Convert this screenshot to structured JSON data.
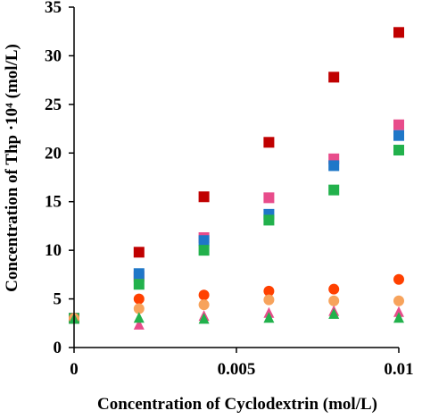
{
  "chart_data": {
    "type": "scatter",
    "xlabel": "Concentration of Cyclodextrin (mol/L)",
    "ylabel": "Concentration of  Thp ·10⁴ (mol/L)",
    "xlim": [
      0,
      0.01
    ],
    "ylim": [
      0,
      35
    ],
    "x_ticks": [
      0,
      0.005,
      0.01
    ],
    "x_tick_labels": [
      "0",
      "0.005",
      "0.01"
    ],
    "y_ticks": [
      0,
      5,
      10,
      15,
      20,
      25,
      30,
      35
    ],
    "y_tick_labels": [
      "0",
      "5",
      "10",
      "15",
      "20",
      "25",
      "30",
      "35"
    ],
    "grid": false,
    "legend": "none",
    "series": [
      {
        "marker": "square",
        "color": "#C00000",
        "x": [
          0,
          0.002,
          0.004,
          0.006,
          0.008,
          0.01
        ],
        "y": [
          3.0,
          9.8,
          15.5,
          21.1,
          27.8,
          32.4
        ]
      },
      {
        "marker": "square",
        "color": "#E84C8B",
        "x": [
          0,
          0.002,
          0.004,
          0.006,
          0.008,
          0.01
        ],
        "y": [
          3.0,
          7.3,
          11.3,
          15.4,
          19.4,
          22.9
        ]
      },
      {
        "marker": "square",
        "color": "#1F77C8",
        "x": [
          0,
          0.002,
          0.004,
          0.006,
          0.008,
          0.01
        ],
        "y": [
          3.0,
          7.6,
          11.0,
          13.7,
          18.7,
          21.8
        ]
      },
      {
        "marker": "square",
        "color": "#22B14C",
        "x": [
          0,
          0.002,
          0.004,
          0.006,
          0.008,
          0.01
        ],
        "y": [
          3.0,
          6.5,
          10.0,
          13.1,
          16.2,
          20.3
        ]
      },
      {
        "marker": "circle",
        "color": "#FF4000",
        "x": [
          0,
          0.002,
          0.004,
          0.006,
          0.008,
          0.01
        ],
        "y": [
          3.0,
          5.0,
          5.4,
          5.8,
          6.0,
          7.0
        ]
      },
      {
        "marker": "circle",
        "color": "#F7A35C",
        "x": [
          0,
          0.002,
          0.004,
          0.006,
          0.008,
          0.01
        ],
        "y": [
          3.0,
          4.0,
          4.4,
          4.9,
          4.8,
          4.8
        ]
      },
      {
        "marker": "triangle",
        "color": "#E84C8B",
        "x": [
          0,
          0.002,
          0.004,
          0.006,
          0.008,
          0.01
        ],
        "y": [
          3.0,
          2.4,
          3.3,
          3.6,
          3.8,
          3.7
        ]
      },
      {
        "marker": "triangle",
        "color": "#22B14C",
        "x": [
          0,
          0.002,
          0.004,
          0.006,
          0.008,
          0.01
        ],
        "y": [
          3.0,
          3.1,
          3.0,
          3.1,
          3.5,
          3.1
        ]
      }
    ]
  }
}
